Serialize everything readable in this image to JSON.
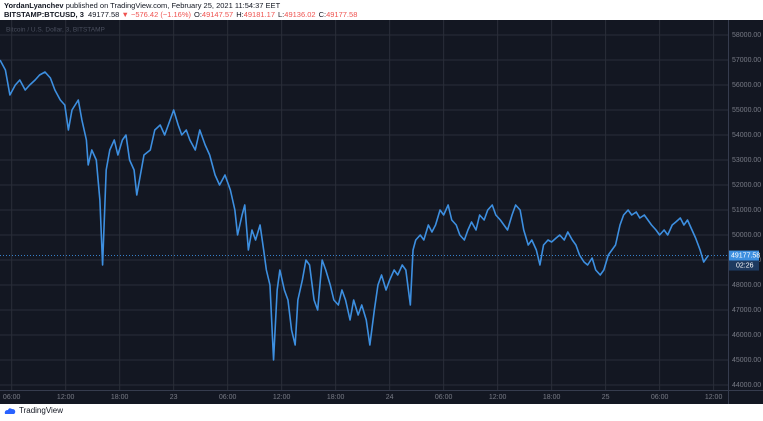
{
  "header": {
    "author": "YordanLyanchev",
    "published": "published on TradingView.com, February 25, 2021 11:54:37 EET",
    "symbol": "BITSTAMP:BTCUSD, 3",
    "last": "49177.58",
    "change": "▼ −576.42 (−1.16%)",
    "ohlc": [
      {
        "label": "O:",
        "value": "49147.57"
      },
      {
        "label": "H:",
        "value": "49181.17"
      },
      {
        "label": "L:",
        "value": "49136.02"
      },
      {
        "label": "C:",
        "value": "49177.58"
      }
    ]
  },
  "footer": {
    "brand": "TradingView"
  },
  "chart_data": {
    "type": "line",
    "title": "Bitcoin / U.S. Dollar, 3, BITSTAMP",
    "countdown": "02:26",
    "grid": true,
    "x": [
      4.7,
      5.3,
      5.8,
      6.4,
      6.9,
      7.5,
      8.0,
      8.6,
      9.1,
      9.7,
      10.3,
      10.8,
      11.4,
      11.9,
      12.3,
      12.7,
      13.4,
      13.8,
      14.3,
      14.5,
      14.9,
      15.4,
      15.8,
      16.1,
      16.5,
      16.9,
      17.4,
      17.8,
      18.3,
      18.7,
      19.1,
      19.6,
      19.9,
      20.3,
      20.7,
      21.4,
      21.9,
      22.5,
      23.0,
      23.6,
      24.0,
      24.5,
      24.9,
      25.4,
      25.8,
      26.4,
      26.9,
      27.5,
      28.0,
      28.6,
      29.1,
      29.7,
      30.3,
      30.8,
      31.1,
      31.6,
      31.9,
      32.3,
      32.7,
      33.1,
      33.6,
      34.0,
      34.3,
      34.7,
      35.1,
      35.5,
      35.8,
      36.3,
      36.7,
      37.1,
      37.5,
      37.8,
      38.3,
      38.7,
      39.1,
      39.6,
      40.0,
      40.5,
      40.9,
      41.4,
      41.8,
      42.3,
      42.7,
      43.1,
      43.6,
      44.0,
      44.5,
      44.9,
      45.4,
      45.8,
      46.3,
      46.7,
      47.1,
      47.6,
      48.0,
      48.5,
      48.9,
      49.4,
      49.8,
      50.3,
      50.6,
      50.9,
      51.4,
      51.8,
      52.3,
      52.7,
      53.1,
      53.6,
      54.0,
      54.5,
      54.9,
      55.4,
      55.8,
      56.3,
      56.7,
      57.1,
      57.6,
      58.0,
      58.5,
      58.9,
      59.4,
      59.8,
      60.3,
      60.7,
      61.1,
      61.6,
      62.0,
      62.5,
      62.9,
      63.4,
      63.8,
      64.3,
      64.7,
      65.1,
      65.6,
      66.0,
      66.5,
      66.9,
      67.4,
      67.8,
      68.3,
      68.7,
      69.1,
      69.6,
      70.0,
      70.5,
      70.9,
      71.4,
      71.8,
      72.3,
      72.7,
      73.1,
      73.6,
      74.0,
      74.5,
      74.9,
      75.4,
      75.8,
      76.3,
      76.7,
      77.1,
      77.6,
      78.0,
      78.5,
      78.9,
      79.4,
      79.8,
      80.3,
      80.7,
      81.1,
      81.6,
      82.0,
      82.5,
      82.9,
      83.4
    ],
    "series": [
      {
        "name": "BTCUSD",
        "color": "#3d8fe0",
        "values": [
          57000,
          56600,
          55600,
          56000,
          56200,
          55800,
          56000,
          56200,
          56400,
          56520,
          56280,
          55800,
          55400,
          55200,
          54200,
          55000,
          55400,
          54600,
          53800,
          52800,
          53400,
          53000,
          51400,
          48800,
          52600,
          53400,
          53800,
          53200,
          53800,
          54000,
          53000,
          52600,
          51600,
          52400,
          53200,
          53400,
          54200,
          54400,
          54000,
          54600,
          55000,
          54400,
          54000,
          54200,
          53800,
          53400,
          54200,
          53600,
          53200,
          52400,
          52000,
          52400,
          51800,
          51000,
          50000,
          50800,
          51200,
          49400,
          50200,
          49800,
          50400,
          49400,
          48600,
          48000,
          45000,
          47800,
          48600,
          47800,
          47400,
          46200,
          45600,
          47400,
          48200,
          49000,
          48800,
          47400,
          47000,
          49000,
          48600,
          48000,
          47400,
          47200,
          47800,
          47400,
          46600,
          47400,
          46800,
          47200,
          46600,
          45600,
          47000,
          48000,
          48400,
          47800,
          48200,
          48600,
          48400,
          48800,
          48600,
          47200,
          49400,
          49800,
          50000,
          49800,
          50400,
          50120,
          50400,
          51000,
          50800,
          51200,
          50600,
          50400,
          50000,
          49800,
          50200,
          50520,
          50200,
          50800,
          50600,
          51000,
          51200,
          50800,
          50600,
          50400,
          50200,
          50800,
          51200,
          51000,
          50200,
          49600,
          49800,
          49400,
          48800,
          49600,
          49800,
          49720,
          49880,
          50000,
          49800,
          50120,
          49800,
          49600,
          49200,
          48920,
          48800,
          49080,
          48600,
          48400,
          48600,
          49200,
          49400,
          49600,
          50400,
          50800,
          51000,
          50800,
          50920,
          50680,
          50800,
          50600,
          50400,
          50200,
          50000,
          50200,
          50000,
          50400,
          50520,
          50680,
          50400,
          50600,
          50200,
          49880,
          49400,
          48920,
          49177.58
        ]
      }
    ],
    "xlim": [
      4.7,
      85.6
    ],
    "xticks": [
      {
        "value": 6,
        "label": "06:00"
      },
      {
        "value": 12,
        "label": "12:00"
      },
      {
        "value": 18,
        "label": "18:00"
      },
      {
        "value": 24,
        "label": "23"
      },
      {
        "value": 30,
        "label": "06:00"
      },
      {
        "value": 36,
        "label": "12:00"
      },
      {
        "value": 42,
        "label": "18:00"
      },
      {
        "value": 48,
        "label": "24"
      },
      {
        "value": 54,
        "label": "06:00"
      },
      {
        "value": 60,
        "label": "12:00"
      },
      {
        "value": 66,
        "label": "18:00"
      },
      {
        "value": 72,
        "label": "25"
      },
      {
        "value": 78,
        "label": "06:00"
      },
      {
        "value": 84,
        "label": "12:00"
      }
    ],
    "ylim": [
      43800,
      58520
    ],
    "yticks": [
      {
        "value": 44000,
        "label": "44000.00"
      },
      {
        "value": 45000,
        "label": "45000.00"
      },
      {
        "value": 46000,
        "label": "46000.00"
      },
      {
        "value": 47000,
        "label": "47000.00"
      },
      {
        "value": 48000,
        "label": "48000.00"
      },
      {
        "value": 49000,
        "label": "49000.00"
      },
      {
        "value": 50000,
        "label": "50000.00"
      },
      {
        "value": 51000,
        "label": "51000.00"
      },
      {
        "value": 52000,
        "label": "52000.00"
      },
      {
        "value": 53000,
        "label": "53000.00"
      },
      {
        "value": 54000,
        "label": "54000.00"
      },
      {
        "value": 55000,
        "label": "55000.00"
      },
      {
        "value": 56000,
        "label": "56000.00"
      },
      {
        "value": 57000,
        "label": "57000.00"
      },
      {
        "value": 58000,
        "label": "58000.00"
      }
    ]
  }
}
